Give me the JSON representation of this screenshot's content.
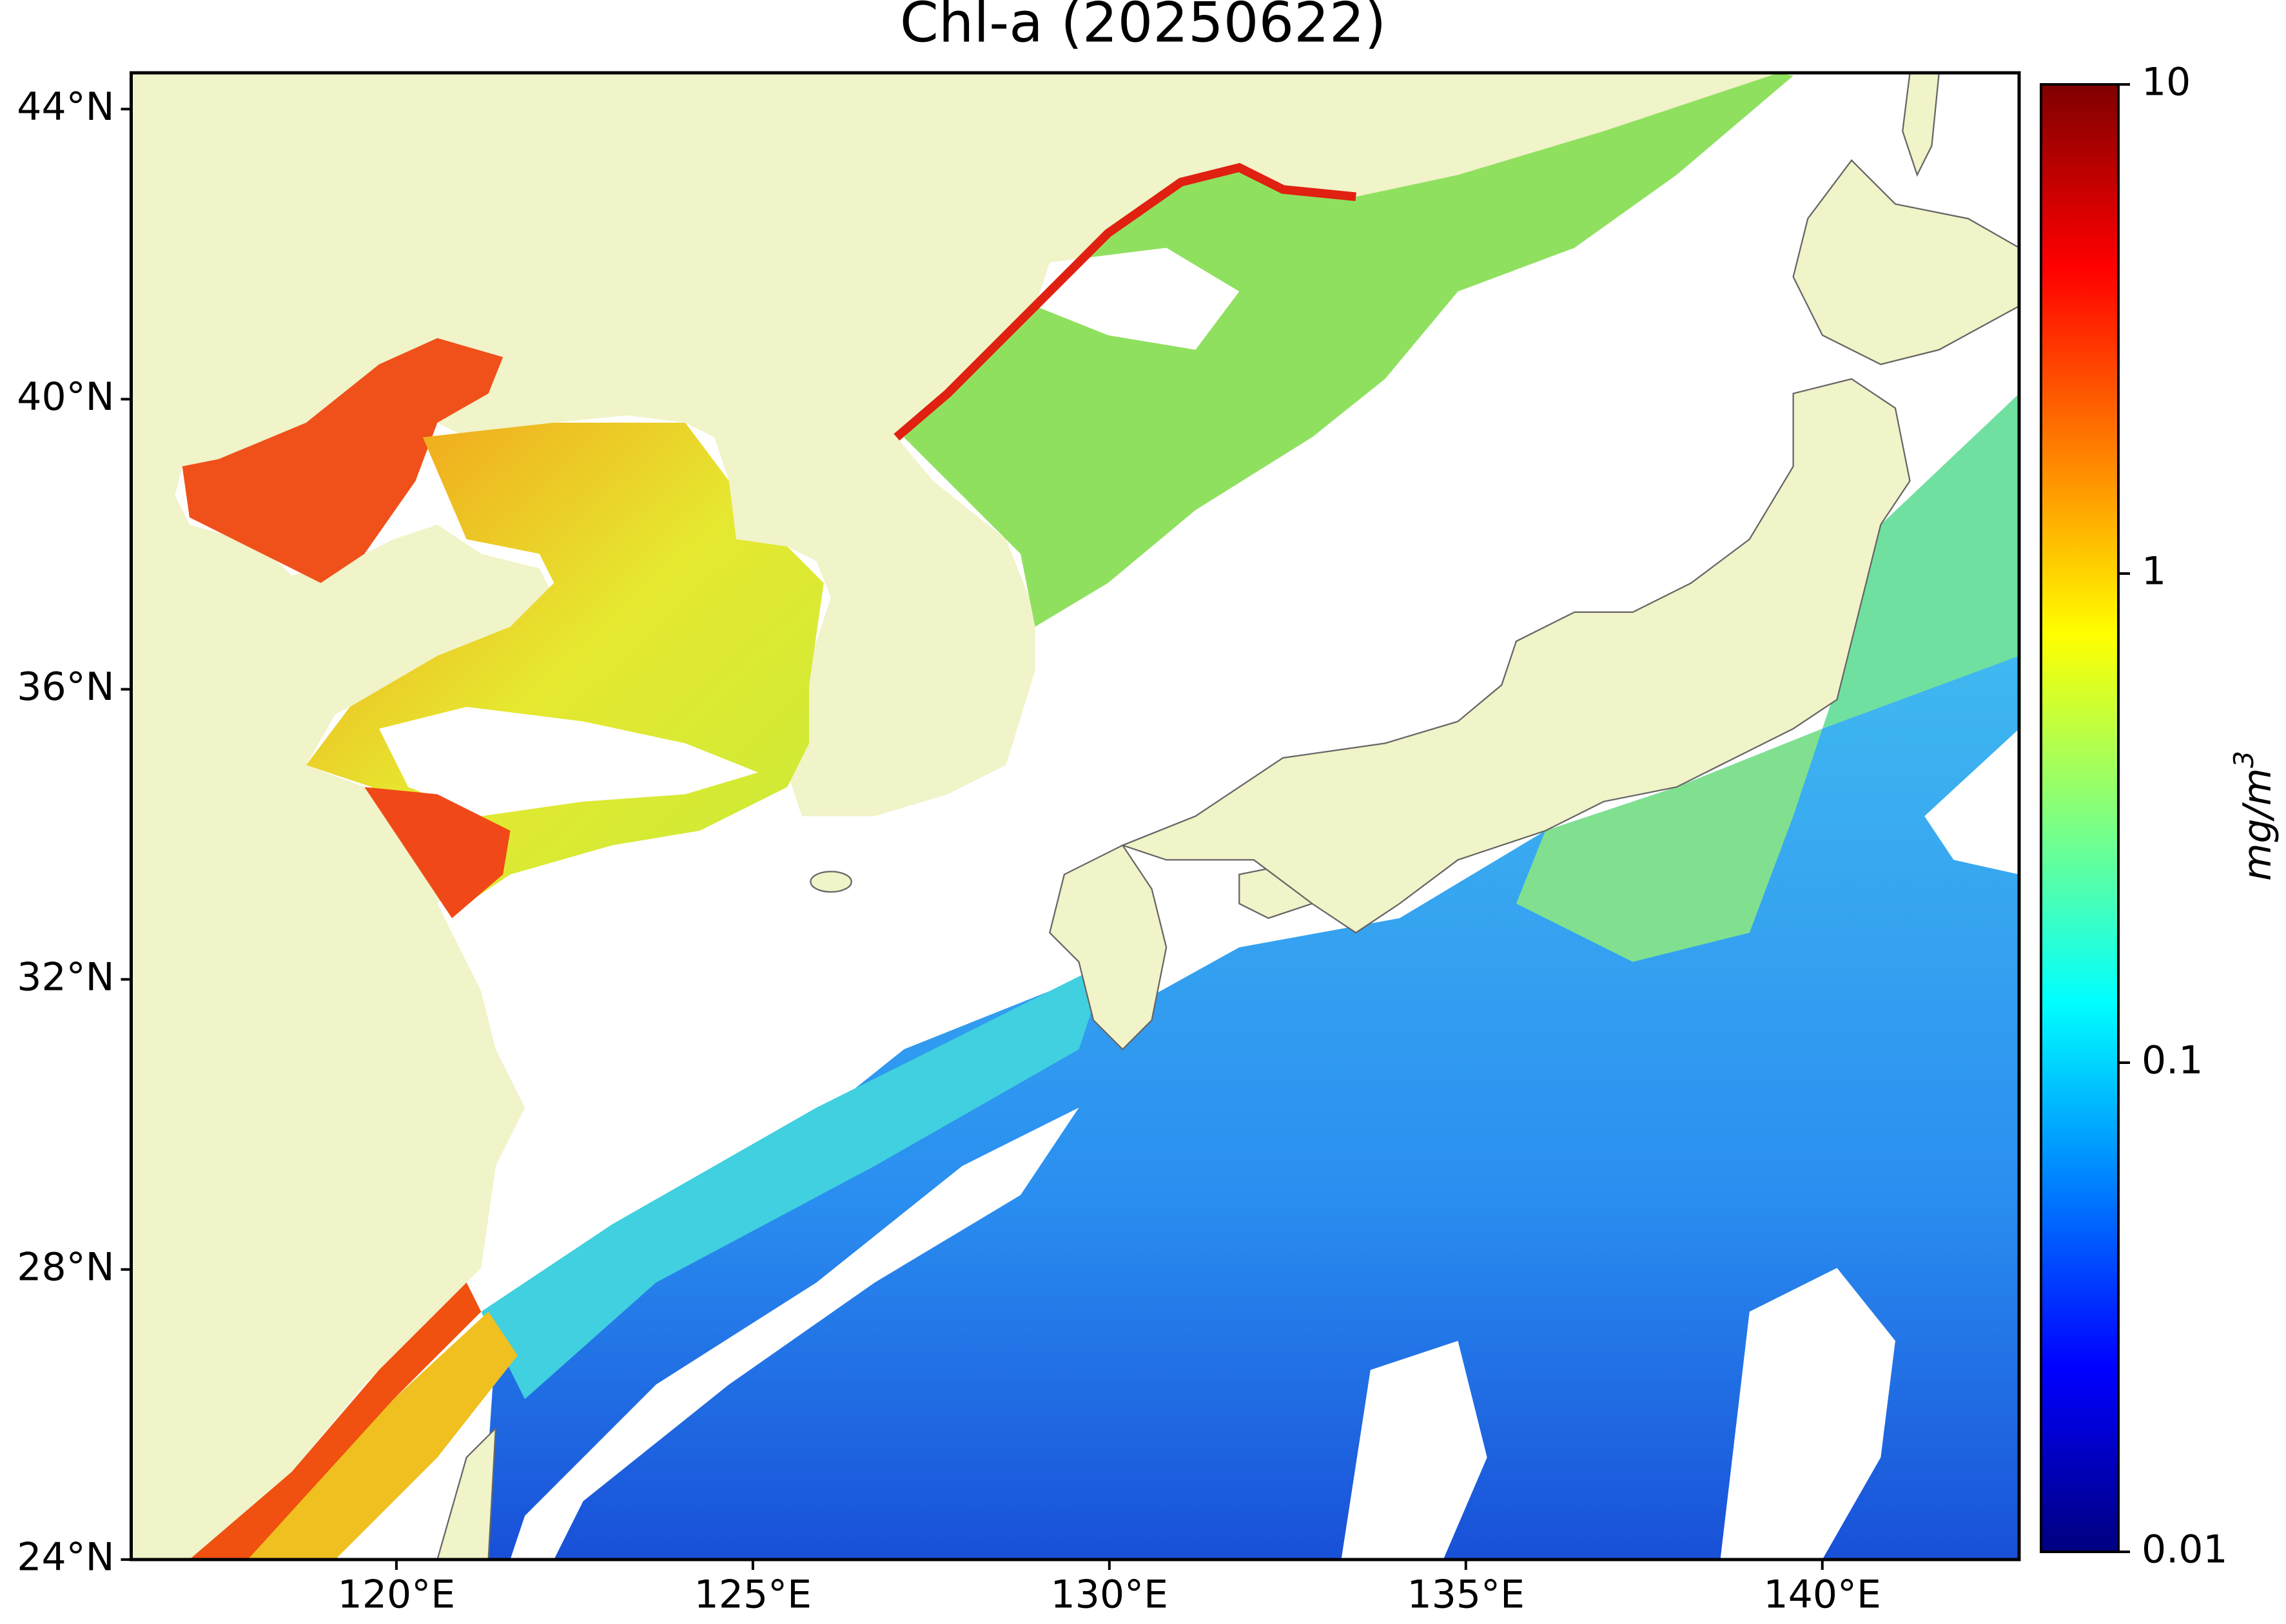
{
  "title": "Chl-a (20250622)",
  "map": {
    "xlim": [
      116.28,
      142.76
    ],
    "ylim": [
      24,
      44.5
    ],
    "xticks": [
      {
        "value": 120,
        "label": "120°E"
      },
      {
        "value": 125,
        "label": "125°E"
      },
      {
        "value": 130,
        "label": "130°E"
      },
      {
        "value": 135,
        "label": "135°E"
      },
      {
        "value": 140,
        "label": "140°E"
      }
    ],
    "yticks": [
      {
        "value": 24,
        "label": "24°N"
      },
      {
        "value": 28,
        "label": "28°N"
      },
      {
        "value": 32,
        "label": "32°N"
      },
      {
        "value": 36,
        "label": "36°N"
      },
      {
        "value": 40,
        "label": "40°N"
      },
      {
        "value": 44,
        "label": "44°N"
      }
    ]
  },
  "colorbar": {
    "scale": "log",
    "lim": [
      0.01,
      10
    ],
    "ticks": [
      0.01,
      0.1,
      1,
      10
    ],
    "units": {
      "base": "mg/m",
      "exponent": "3"
    }
  }
}
